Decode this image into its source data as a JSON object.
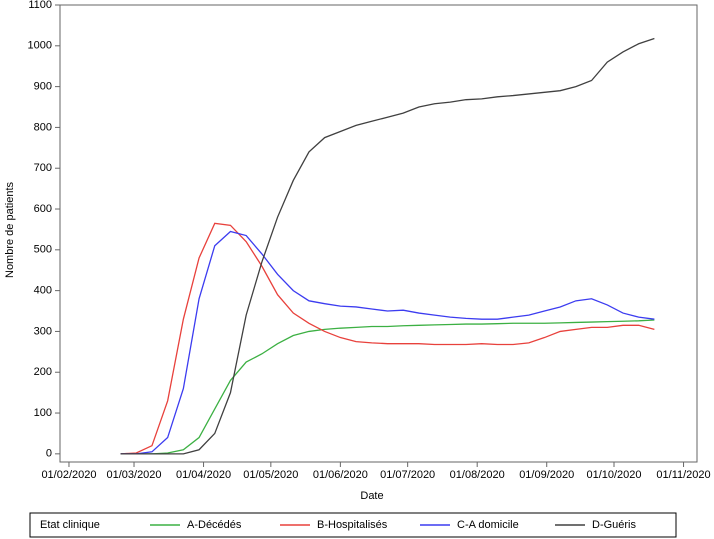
{
  "chart_data": {
    "type": "line",
    "x_label": "Date",
    "y_label": "Nombre de patients",
    "legend_title": "Etat clinique",
    "x": [
      "2020-02-24",
      "2020-03-02",
      "2020-03-09",
      "2020-03-16",
      "2020-03-23",
      "2020-03-30",
      "2020-04-06",
      "2020-04-13",
      "2020-04-20",
      "2020-04-27",
      "2020-05-04",
      "2020-05-11",
      "2020-05-18",
      "2020-05-25",
      "2020-06-01",
      "2020-06-08",
      "2020-06-15",
      "2020-06-22",
      "2020-06-29",
      "2020-07-06",
      "2020-07-13",
      "2020-07-20",
      "2020-07-27",
      "2020-08-03",
      "2020-08-10",
      "2020-08-17",
      "2020-08-24",
      "2020-08-31",
      "2020-09-07",
      "2020-09-14",
      "2020-09-21",
      "2020-09-28",
      "2020-10-05",
      "2020-10-12",
      "2020-10-19"
    ],
    "series": [
      {
        "name": "A-Décédés",
        "color": "#3cb043",
        "values": [
          0,
          0,
          0,
          2,
          10,
          40,
          110,
          180,
          225,
          245,
          270,
          290,
          300,
          305,
          308,
          310,
          312,
          312,
          314,
          315,
          316,
          317,
          318,
          318,
          319,
          320,
          320,
          320,
          321,
          322,
          323,
          324,
          325,
          326,
          328
        ]
      },
      {
        "name": "B-Hospitalisés",
        "color": "#e8413c",
        "values": [
          0,
          2,
          20,
          130,
          330,
          480,
          565,
          560,
          520,
          460,
          390,
          345,
          320,
          300,
          285,
          275,
          272,
          270,
          270,
          270,
          268,
          268,
          268,
          270,
          268,
          268,
          272,
          285,
          300,
          305,
          310,
          310,
          315,
          315,
          305
        ]
      },
      {
        "name": "C-A domicile",
        "color": "#3c3cf0",
        "values": [
          0,
          0,
          5,
          40,
          160,
          380,
          510,
          545,
          535,
          490,
          440,
          400,
          375,
          368,
          362,
          360,
          355,
          350,
          352,
          345,
          340,
          335,
          332,
          330,
          330,
          335,
          340,
          350,
          360,
          375,
          380,
          365,
          345,
          335,
          330
        ]
      },
      {
        "name": "D-Guéris",
        "color": "#404040",
        "values": [
          0,
          0,
          0,
          0,
          0,
          10,
          50,
          150,
          340,
          470,
          580,
          670,
          740,
          775,
          790,
          805,
          815,
          825,
          835,
          850,
          858,
          862,
          868,
          870,
          875,
          878,
          882,
          886,
          890,
          900,
          915,
          960,
          985,
          1005,
          1018
        ]
      }
    ],
    "xlim": [
      "2020-01-28",
      "2020-11-07"
    ],
    "xticks": [
      {
        "value": "2020-02-01",
        "label": "01/02/2020"
      },
      {
        "value": "2020-03-01",
        "label": "01/03/2020"
      },
      {
        "value": "2020-04-01",
        "label": "01/04/2020"
      },
      {
        "value": "2020-05-01",
        "label": "01/05/2020"
      },
      {
        "value": "2020-06-01",
        "label": "01/06/2020"
      },
      {
        "value": "2020-07-01",
        "label": "01/07/2020"
      },
      {
        "value": "2020-08-01",
        "label": "01/08/2020"
      },
      {
        "value": "2020-09-01",
        "label": "01/09/2020"
      },
      {
        "value": "2020-10-01",
        "label": "01/10/2020"
      },
      {
        "value": "2020-11-01",
        "label": "01/11/2020"
      }
    ],
    "ylim": [
      -20,
      1100
    ],
    "yticks": [
      0,
      100,
      200,
      300,
      400,
      500,
      600,
      700,
      800,
      900,
      1000,
      1100
    ]
  }
}
